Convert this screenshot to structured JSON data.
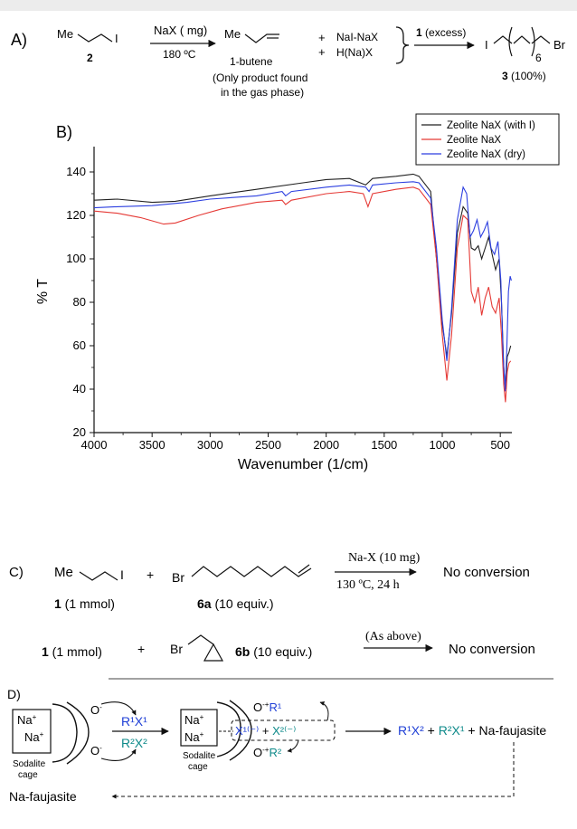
{
  "panel_a": {
    "label": "A)",
    "me": "Me",
    "i": "I",
    "compound_2": "2",
    "reagent": "NaX ( mg)",
    "temperature": "180 ºC",
    "product_name": "1-butene",
    "note_line1": "(Only product found",
    "note_line2": "in the gas phase)",
    "plus1": "+",
    "plus2": "+",
    "side1": "NaI-NaX",
    "side2": "H(Na)X",
    "excess_num": "1",
    "excess_text": " (excess)",
    "product_i": "I",
    "product_br": "Br",
    "subscript": "6",
    "compound_3": "3",
    "yield": " (100%)"
  },
  "panel_b": {
    "label": "B)"
  },
  "chart_data": {
    "type": "line",
    "xlabel": "Wavenumber (1/cm)",
    "ylabel": "% T",
    "xlim": [
      4000,
      400
    ],
    "ylim": [
      20,
      150
    ],
    "xticks": [
      4000,
      3500,
      3000,
      2500,
      2000,
      1500,
      1000,
      500
    ],
    "yticks": [
      20,
      40,
      60,
      80,
      100,
      120,
      140
    ],
    "legend_position": "top-right",
    "series": [
      {
        "name": "Zeolite NaX (with I)",
        "color": "#222222",
        "points": [
          [
            4000,
            127
          ],
          [
            3800,
            127.5
          ],
          [
            3500,
            126
          ],
          [
            3300,
            126.5
          ],
          [
            3000,
            129
          ],
          [
            2600,
            132
          ],
          [
            2200,
            135
          ],
          [
            2000,
            136.5
          ],
          [
            1800,
            137
          ],
          [
            1660,
            134
          ],
          [
            1600,
            137
          ],
          [
            1400,
            138
          ],
          [
            1250,
            139
          ],
          [
            1200,
            138
          ],
          [
            1100,
            131
          ],
          [
            1050,
            100
          ],
          [
            1000,
            70
          ],
          [
            960,
            55
          ],
          [
            920,
            75
          ],
          [
            870,
            112
          ],
          [
            820,
            124
          ],
          [
            780,
            121
          ],
          [
            750,
            105
          ],
          [
            720,
            104
          ],
          [
            690,
            106
          ],
          [
            660,
            100
          ],
          [
            630,
            105
          ],
          [
            600,
            110
          ],
          [
            570,
            102
          ],
          [
            540,
            95
          ],
          [
            510,
            100
          ],
          [
            490,
            80
          ],
          [
            470,
            50
          ],
          [
            455,
            40
          ],
          [
            440,
            55
          ],
          [
            425,
            57
          ],
          [
            410,
            60
          ]
        ]
      },
      {
        "name": "Zeolite NaX",
        "color": "#e53935",
        "points": [
          [
            4000,
            122
          ],
          [
            3800,
            121
          ],
          [
            3600,
            119
          ],
          [
            3400,
            116
          ],
          [
            3300,
            116.5
          ],
          [
            3100,
            120
          ],
          [
            2900,
            123
          ],
          [
            2600,
            126
          ],
          [
            2380,
            127
          ],
          [
            2350,
            125
          ],
          [
            2300,
            127
          ],
          [
            2000,
            130
          ],
          [
            1800,
            131
          ],
          [
            1680,
            130
          ],
          [
            1640,
            124
          ],
          [
            1600,
            130
          ],
          [
            1400,
            132
          ],
          [
            1250,
            133
          ],
          [
            1200,
            132
          ],
          [
            1100,
            125
          ],
          [
            1050,
            100
          ],
          [
            1000,
            65
          ],
          [
            960,
            44
          ],
          [
            920,
            65
          ],
          [
            870,
            105
          ],
          [
            820,
            120
          ],
          [
            780,
            118
          ],
          [
            750,
            85
          ],
          [
            720,
            80
          ],
          [
            690,
            87
          ],
          [
            660,
            74
          ],
          [
            630,
            82
          ],
          [
            600,
            87
          ],
          [
            570,
            78
          ],
          [
            540,
            75
          ],
          [
            510,
            82
          ],
          [
            490,
            65
          ],
          [
            470,
            42
          ],
          [
            455,
            34
          ],
          [
            440,
            48
          ],
          [
            425,
            52
          ],
          [
            410,
            53
          ]
        ]
      },
      {
        "name": "Zeolite NaX (dry)",
        "color": "#2c3fe0",
        "points": [
          [
            4000,
            123.5
          ],
          [
            3800,
            124
          ],
          [
            3500,
            124.5
          ],
          [
            3200,
            126
          ],
          [
            3000,
            127.5
          ],
          [
            2600,
            129
          ],
          [
            2380,
            131
          ],
          [
            2350,
            129
          ],
          [
            2300,
            131
          ],
          [
            2000,
            133
          ],
          [
            1800,
            134
          ],
          [
            1660,
            133
          ],
          [
            1630,
            131
          ],
          [
            1600,
            134
          ],
          [
            1400,
            135
          ],
          [
            1250,
            135.5
          ],
          [
            1200,
            135
          ],
          [
            1100,
            128
          ],
          [
            1050,
            105
          ],
          [
            1000,
            72
          ],
          [
            960,
            53
          ],
          [
            920,
            77
          ],
          [
            870,
            118
          ],
          [
            820,
            133
          ],
          [
            790,
            130
          ],
          [
            760,
            110
          ],
          [
            730,
            113
          ],
          [
            700,
            118
          ],
          [
            670,
            110
          ],
          [
            640,
            113
          ],
          [
            610,
            117
          ],
          [
            580,
            105
          ],
          [
            550,
            102
          ],
          [
            520,
            108
          ],
          [
            495,
            90
          ],
          [
            475,
            55
          ],
          [
            458,
            39
          ],
          [
            445,
            56
          ],
          [
            430,
            85
          ],
          [
            415,
            92
          ],
          [
            405,
            90
          ]
        ]
      }
    ]
  },
  "panel_c": {
    "label": "C)",
    "me": "Me",
    "i": "I",
    "plus": "+",
    "br": "Br",
    "reagent": "Na-X (10 mg)",
    "conditions": "130 ºC, 24 h",
    "result1": "No conversion",
    "c1_num": "1",
    "c1_text": " (1 mmol)",
    "c6a_num": "6a",
    "c6a_text": " (10 equiv.)",
    "row2_num": "1",
    "row2_text": " (1 mmol)",
    "plus2": "+",
    "br2": "Br",
    "c6b_num": "6b",
    "c6b_text": " (10 equiv.)",
    "as_above": "(As above)",
    "result2": "No conversion"
  },
  "panel_d": {
    "label": "D)",
    "na1": "Na",
    "na2": "Na",
    "sodalite": "Sodalite",
    "cage": "cage",
    "o_minus": "O",
    "r1x1": "R¹X¹",
    "r2x2": "R²X²",
    "na3": "Na",
    "na4": "Na",
    "sodalite2": "Sodalite",
    "cage2": "cage",
    "o_r1": "O",
    "r1": "R¹",
    "o_r2": "O",
    "r2": "R²",
    "x_box_x1": "X¹⁽⁻⁾",
    "x_box_plus": " + ",
    "x_box_x2": "X²⁽⁻⁾",
    "product_r1x2": "R¹X²",
    "product_plus1": " + ",
    "product_r2x1": "R²X¹",
    "product_rest": " + Na-faujasite",
    "bottom": "Na-faujasite"
  }
}
